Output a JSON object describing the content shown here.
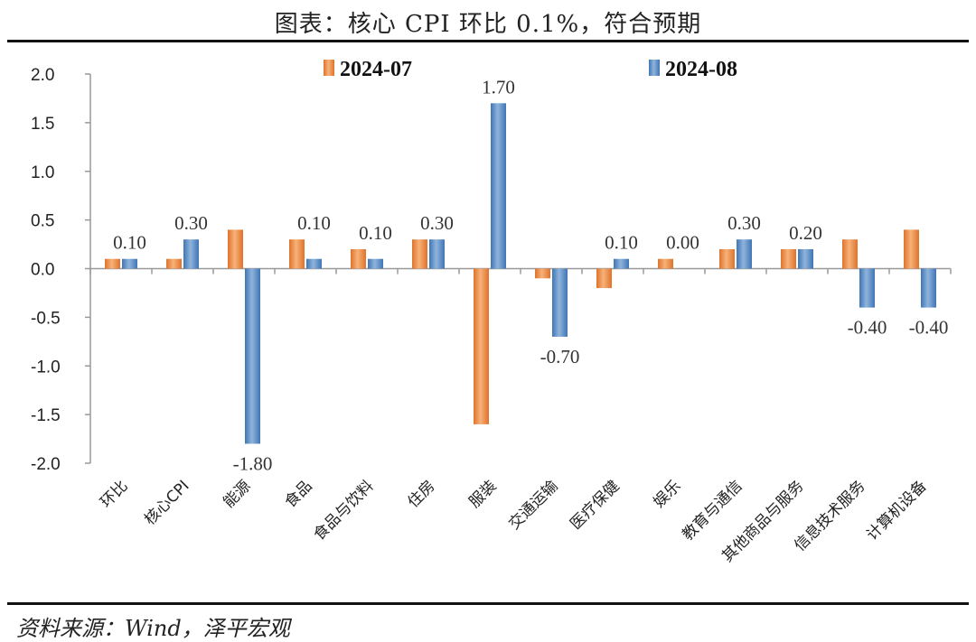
{
  "header": {
    "title": "图表：核心 CPI 环比 0.1%，符合预期"
  },
  "footer": {
    "source": "资料来源：Wind，泽平宏观"
  },
  "colors": {
    "series_2024_07_light": "#f6b27a",
    "series_2024_07_dark": "#e0722a",
    "series_2024_08_light": "#8fb4dc",
    "series_2024_08_dark": "#3f75b5",
    "axis": "#999999"
  },
  "chart_data": {
    "type": "bar",
    "title": "图表：核心 CPI 环比 0.1%，符合预期",
    "xlabel": "",
    "ylabel": "",
    "ylim": [
      -2.0,
      2.0
    ],
    "yticks": [
      "2.0",
      "1.5",
      "1.0",
      "0.5",
      "0.0",
      "-0.5",
      "-1.0",
      "-1.5",
      "-2.0"
    ],
    "ytick_values": [
      2.0,
      1.5,
      1.0,
      0.5,
      0.0,
      -0.5,
      -1.0,
      -1.5,
      -2.0
    ],
    "grid": false,
    "legend_position": "top",
    "categories": [
      "环比",
      "核心CPI",
      "能源",
      "食品",
      "食品与饮料",
      "住房",
      "服装",
      "交通运输",
      "医疗保健",
      "娱乐",
      "教育与通信",
      "其他商品与服务",
      "信息技术服务",
      "计算机设备"
    ],
    "series": [
      {
        "name": "2024-07",
        "values": [
          0.1,
          0.1,
          0.4,
          0.3,
          0.2,
          0.3,
          -1.6,
          -0.1,
          -0.2,
          0.1,
          0.2,
          0.2,
          0.3,
          0.4
        ]
      },
      {
        "name": "2024-08",
        "values": [
          0.1,
          0.3,
          -1.8,
          0.1,
          0.1,
          0.3,
          1.7,
          -0.7,
          0.1,
          0.0,
          0.3,
          0.2,
          -0.4,
          -0.4
        ]
      }
    ],
    "data_labels": [
      "0.10",
      "0.30",
      "-1.80",
      "0.10",
      "0.10",
      "0.30",
      "1.70",
      "-0.70",
      "0.10",
      "0.00",
      "0.30",
      "0.20",
      "-0.40",
      "-0.40"
    ]
  }
}
